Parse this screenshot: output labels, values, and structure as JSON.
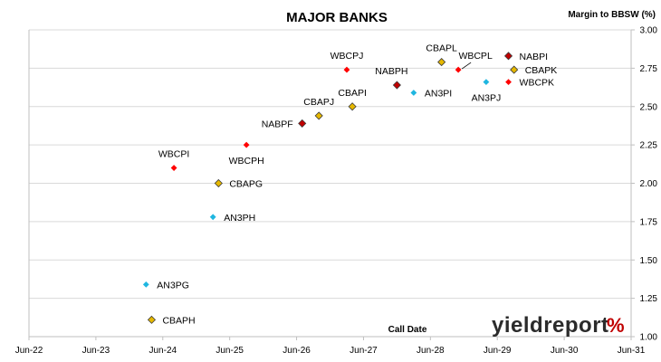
{
  "chart_data": {
    "type": "scatter",
    "title": "MAJOR BANKS",
    "xlabel": "Call Date",
    "ylabel": "Margin to BBSW (%)",
    "ylim": [
      1.0,
      3.0
    ],
    "yticks": [
      "1.00",
      "1.25",
      "1.50",
      "1.75",
      "2.00",
      "2.25",
      "2.50",
      "2.75",
      "3.00"
    ],
    "xticks": [
      "Jun-22",
      "Jun-23",
      "Jun-24",
      "Jun-25",
      "Jun-26",
      "Jun-27",
      "Jun-28",
      "Jun-29",
      "Jun-30",
      "Jun-31"
    ],
    "xlim": [
      "2022-06",
      "2031-06"
    ],
    "grid": "horizontal",
    "colors": {
      "WBC": "#ff0000",
      "NAB": "#c00000",
      "CBA": "#e6b800",
      "ANZ": "#1fb6e0"
    },
    "points": [
      {
        "name": "CBAPH",
        "bank": "CBA",
        "x": "2024-04",
        "y": 1.11,
        "label_pos": "right"
      },
      {
        "name": "AN3PG",
        "bank": "ANZ",
        "x": "2024-03",
        "y": 1.34,
        "label_pos": "right"
      },
      {
        "name": "AN3PH",
        "bank": "ANZ",
        "x": "2025-03",
        "y": 1.78,
        "label_pos": "right"
      },
      {
        "name": "CBAPG",
        "bank": "CBA",
        "x": "2025-04",
        "y": 2.0,
        "label_pos": "right"
      },
      {
        "name": "WBCPI",
        "bank": "WBC",
        "x": "2024-08",
        "y": 2.1,
        "label_pos": "above"
      },
      {
        "name": "WBCPH",
        "bank": "WBC",
        "x": "2025-09",
        "y": 2.25,
        "label_pos": "below"
      },
      {
        "name": "NABPF",
        "bank": "NAB",
        "x": "2026-07",
        "y": 2.39,
        "label_pos": "left"
      },
      {
        "name": "CBAPJ",
        "bank": "CBA",
        "x": "2026-10",
        "y": 2.44,
        "label_pos": "above"
      },
      {
        "name": "CBAPI",
        "bank": "CBA",
        "x": "2027-04",
        "y": 2.5,
        "label_pos": "above"
      },
      {
        "name": "WBCPJ",
        "bank": "WBC",
        "x": "2027-03",
        "y": 2.74,
        "label_pos": "above"
      },
      {
        "name": "NABPH",
        "bank": "NAB",
        "x": "2027-12",
        "y": 2.64,
        "label_pos": "above"
      },
      {
        "name": "AN3PI",
        "bank": "ANZ",
        "x": "2028-03",
        "y": 2.59,
        "label_pos": "right"
      },
      {
        "name": "CBAPL",
        "bank": "CBA",
        "x": "2028-08",
        "y": 2.79,
        "label_pos": "above"
      },
      {
        "name": "WBCPL",
        "bank": "WBC",
        "x": "2028-11",
        "y": 2.74,
        "label_pos": "above"
      },
      {
        "name": "AN3PJ",
        "bank": "ANZ",
        "x": "2029-04",
        "y": 2.66,
        "label_pos": "below"
      },
      {
        "name": "CBAPK",
        "bank": "CBA",
        "x": "2029-09",
        "y": 2.74,
        "label_pos": "right"
      },
      {
        "name": "NABPI",
        "bank": "NAB",
        "x": "2029-08",
        "y": 2.83,
        "label_pos": "right"
      },
      {
        "name": "WBCPK",
        "bank": "WBC",
        "x": "2029-08",
        "y": 2.66,
        "label_pos": "right"
      }
    ]
  },
  "logo": {
    "text": "yieldreport",
    "symbol": "%"
  }
}
